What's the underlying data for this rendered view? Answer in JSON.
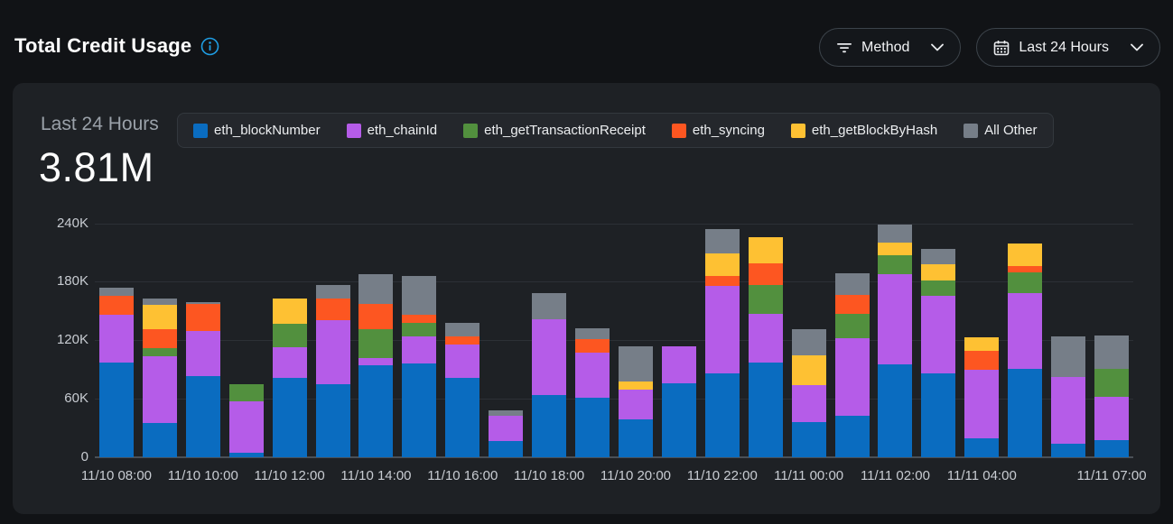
{
  "page": {
    "title": "Total Credit Usage"
  },
  "toolbar": {
    "method_filter": {
      "label": "Method"
    },
    "time_range": {
      "label": "Last 24 Hours"
    }
  },
  "summary": {
    "period_label": "Last 24 Hours",
    "total_value": "3.81M"
  },
  "colors": {
    "accent_info": "#1f9de3",
    "page_bg": "#111316",
    "card_bg": "#1e2125",
    "series_blue": "#0a6cc0",
    "series_purple": "#b55ce8",
    "series_green": "#52903e",
    "series_orange": "#fd5621",
    "series_yellow": "#fec133",
    "series_gray": "#767e88"
  },
  "chart_data": {
    "type": "bar",
    "stacked": true,
    "title": "Total Credit Usage",
    "xlabel": "",
    "ylabel": "",
    "grid": true,
    "legend_position": "top",
    "ylim": [
      0,
      248000
    ],
    "y_ticks": [
      {
        "value": 0,
        "label": "0"
      },
      {
        "value": 60000,
        "label": "60K"
      },
      {
        "value": 120000,
        "label": "120K"
      },
      {
        "value": 180000,
        "label": "180K"
      },
      {
        "value": 240000,
        "label": "240K"
      }
    ],
    "x": [
      "11/10 08:00",
      "11/10 09:00",
      "11/10 10:00",
      "11/10 11:00",
      "11/10 12:00",
      "11/10 13:00",
      "11/10 14:00",
      "11/10 15:00",
      "11/10 16:00",
      "11/10 17:00",
      "11/10 18:00",
      "11/10 19:00",
      "11/10 20:00",
      "11/10 21:00",
      "11/10 22:00",
      "11/10 23:00",
      "11/11 00:00",
      "11/11 01:00",
      "11/11 02:00",
      "11/11 03:00",
      "11/11 04:00",
      "11/11 05:00",
      "11/11 06:00",
      "11/11 07:00"
    ],
    "x_tick_labels": [
      {
        "index": 0,
        "label": "11/10 08:00"
      },
      {
        "index": 2,
        "label": "11/10 10:00"
      },
      {
        "index": 4,
        "label": "11/10 12:00"
      },
      {
        "index": 6,
        "label": "11/10 14:00"
      },
      {
        "index": 8,
        "label": "11/10 16:00"
      },
      {
        "index": 10,
        "label": "11/10 18:00"
      },
      {
        "index": 12,
        "label": "11/10 20:00"
      },
      {
        "index": 14,
        "label": "11/10 22:00"
      },
      {
        "index": 16,
        "label": "11/11 00:00"
      },
      {
        "index": 18,
        "label": "11/11 02:00"
      },
      {
        "index": 20,
        "label": "11/11 04:00"
      },
      {
        "index": 23,
        "label": "11/11 07:00"
      }
    ],
    "series": [
      {
        "name": "eth_blockNumber",
        "color": "#0a6cc0",
        "values": [
          97000,
          35000,
          83000,
          5000,
          81000,
          75000,
          94000,
          96000,
          81000,
          17000,
          64000,
          61000,
          39000,
          76000,
          86000,
          97000,
          36000,
          43000,
          95000,
          86000,
          19000,
          91000,
          14000,
          18000
        ]
      },
      {
        "name": "eth_chainId",
        "color": "#b55ce8",
        "values": [
          49000,
          69000,
          47000,
          52000,
          32000,
          66000,
          8000,
          28000,
          35000,
          26000,
          78000,
          46000,
          30000,
          38000,
          90000,
          50000,
          38000,
          79000,
          93000,
          80000,
          71000,
          77000,
          68000,
          44000
        ]
      },
      {
        "name": "eth_getTransactionReceipt",
        "color": "#52903e",
        "values": [
          0,
          8000,
          0,
          18000,
          24000,
          0,
          29000,
          14000,
          0,
          0,
          0,
          0,
          0,
          0,
          0,
          30000,
          0,
          25000,
          19000,
          15000,
          0,
          22000,
          0,
          29000
        ]
      },
      {
        "name": "eth_syncing",
        "color": "#fd5621",
        "values": [
          20000,
          19000,
          27000,
          0,
          0,
          22000,
          26000,
          8000,
          8000,
          0,
          0,
          14000,
          0,
          0,
          10000,
          22000,
          0,
          20000,
          0,
          0,
          19000,
          6000,
          0,
          0
        ]
      },
      {
        "name": "eth_getBlockByHash",
        "color": "#fec133",
        "values": [
          0,
          25000,
          0,
          0,
          26000,
          0,
          0,
          0,
          0,
          0,
          0,
          0,
          9000,
          0,
          23000,
          27000,
          31000,
          0,
          13000,
          17000,
          14000,
          23000,
          0,
          0
        ]
      },
      {
        "name": "All Other",
        "color": "#767e88",
        "values": [
          8000,
          7000,
          2000,
          0,
          0,
          14000,
          31000,
          40000,
          14000,
          5000,
          26000,
          11000,
          36000,
          0,
          25000,
          0,
          26000,
          22000,
          19000,
          16000,
          0,
          0,
          42000,
          34000
        ]
      }
    ]
  }
}
